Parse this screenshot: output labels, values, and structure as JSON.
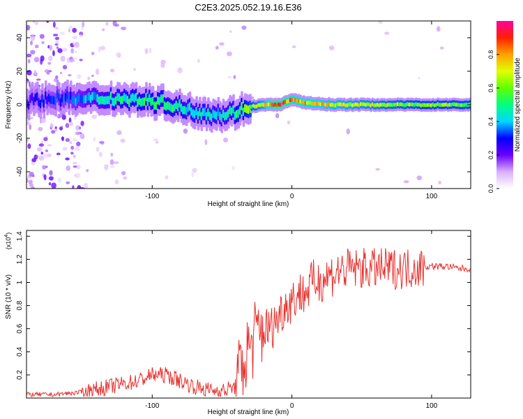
{
  "title": "C2E3.2025.052.19.16.E36",
  "chart_data": [
    {
      "type": "heatmap",
      "xlabel": "Height of straight line (km)",
      "ylabel": "Frequency (Hz)",
      "xlim": [
        -190,
        128
      ],
      "ylim": [
        -50,
        50
      ],
      "x_ticks": [
        -100,
        0,
        100
      ],
      "y_ticks": [
        -40,
        -20,
        0,
        20,
        40
      ],
      "colorbar": {
        "label": "Normalized spectral amplitude",
        "range": [
          0,
          1
        ],
        "ticks": [
          0.0,
          0.2,
          0.4,
          0.6,
          0.8
        ]
      },
      "ridge": {
        "x": [
          -190,
          -170,
          -150,
          -130,
          -110,
          -90,
          -75,
          -60,
          -50,
          -40,
          -30,
          -20,
          -10,
          0,
          10,
          30,
          60,
          90,
          128
        ],
        "freq": [
          2,
          4,
          3,
          4,
          3,
          1,
          -3,
          -5,
          -6,
          -4,
          -1,
          0,
          0,
          3,
          1,
          0,
          0,
          0,
          0
        ],
        "amplitude": [
          0.25,
          0.3,
          0.35,
          0.45,
          0.5,
          0.5,
          0.45,
          0.45,
          0.4,
          0.5,
          0.6,
          0.7,
          0.9,
          0.8,
          0.75,
          0.7,
          0.65,
          0.6,
          0.6
        ]
      }
    },
    {
      "type": "line",
      "xlabel": "Height of straight line (km)",
      "ylabel": "SNR (10 * v/v)",
      "y_multiplier": "(x10",
      "y_multiplier_exp": "4",
      "y_multiplier_close": ")",
      "xlim": [
        -190,
        128
      ],
      "ylim": [
        0,
        1.45
      ],
      "x_ticks": [
        -100,
        0,
        100
      ],
      "y_ticks": [
        0.2,
        0.4,
        0.6,
        0.8,
        1.0,
        1.2,
        1.4
      ],
      "color": "#e8302c",
      "series": [
        {
          "x": [
            -190,
            -170,
            -150,
            -130,
            -110,
            -100,
            -90,
            -80,
            -70,
            -60,
            -50,
            -40,
            -35,
            -30,
            -25,
            -20,
            -15,
            -10,
            -5,
            0,
            5,
            10,
            15,
            20,
            25,
            30,
            35,
            40,
            50,
            60,
            70,
            80,
            90,
            100,
            110,
            120,
            128
          ],
          "y": [
            0.03,
            0.03,
            0.05,
            0.1,
            0.15,
            0.2,
            0.2,
            0.15,
            0.1,
            0.07,
            0.06,
            0.1,
            0.3,
            0.45,
            0.55,
            0.6,
            0.6,
            0.7,
            0.8,
            0.85,
            0.9,
            0.92,
            1.0,
            1.02,
            1.05,
            1.08,
            1.1,
            1.12,
            1.12,
            1.12,
            1.12,
            1.12,
            1.13,
            1.14,
            1.14,
            1.12,
            1.12
          ]
        }
      ]
    }
  ]
}
